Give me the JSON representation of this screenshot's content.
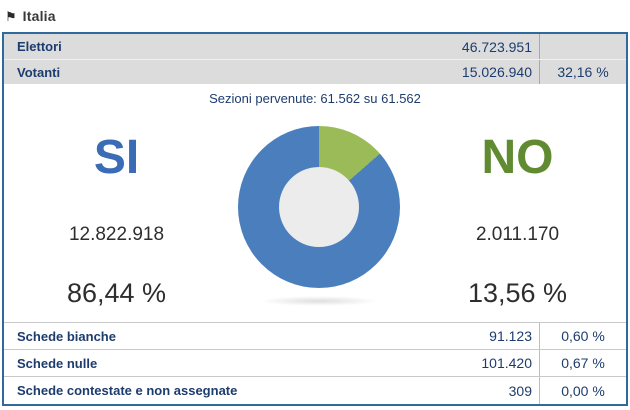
{
  "header": {
    "flag_icon": "⚑",
    "region_label": "Italia"
  },
  "summary_table": {
    "rows": [
      {
        "label": "Elettori",
        "value": "46.723.951",
        "percent": ""
      },
      {
        "label": "Votanti",
        "value": "15.026.940",
        "percent": "32,16 %"
      }
    ]
  },
  "sections_line": "Sezioni pervenute: 61.562 su 61.562",
  "results": {
    "yes": {
      "label": "SI",
      "votes": "12.822.918",
      "percent": "86,44 %"
    },
    "no": {
      "label": "NO",
      "votes": "2.011.170",
      "percent": "13,56 %"
    }
  },
  "chart_data": {
    "type": "pie",
    "variant": "donut",
    "categories": [
      "SI",
      "NO"
    ],
    "values": [
      12822918,
      2011170
    ],
    "percents": [
      86.44,
      13.56
    ],
    "colors": [
      "#4a7ebc",
      "#9bbb59"
    ],
    "start_angle_deg": 0,
    "direction": "clockwise",
    "legend_position": "none",
    "title": ""
  },
  "ballots_table": {
    "rows": [
      {
        "label": "Schede bianche",
        "value": "91.123",
        "percent": "0,60 %"
      },
      {
        "label": "Schede nulle",
        "value": "101.420",
        "percent": "0,67 %"
      },
      {
        "label": "Schede contestate e non assegnate",
        "value": "309",
        "percent": "0,00 %"
      }
    ]
  },
  "colors": {
    "box_border": "#30699c",
    "table_bg": "#dcdcdc",
    "navy_text": "#1d3c6e",
    "yes_accent": "#3a6db5",
    "no_accent": "#618b31",
    "donut_blue": "#4a7ebc",
    "donut_green": "#9bbb59",
    "donut_hole": "#ececec"
  }
}
